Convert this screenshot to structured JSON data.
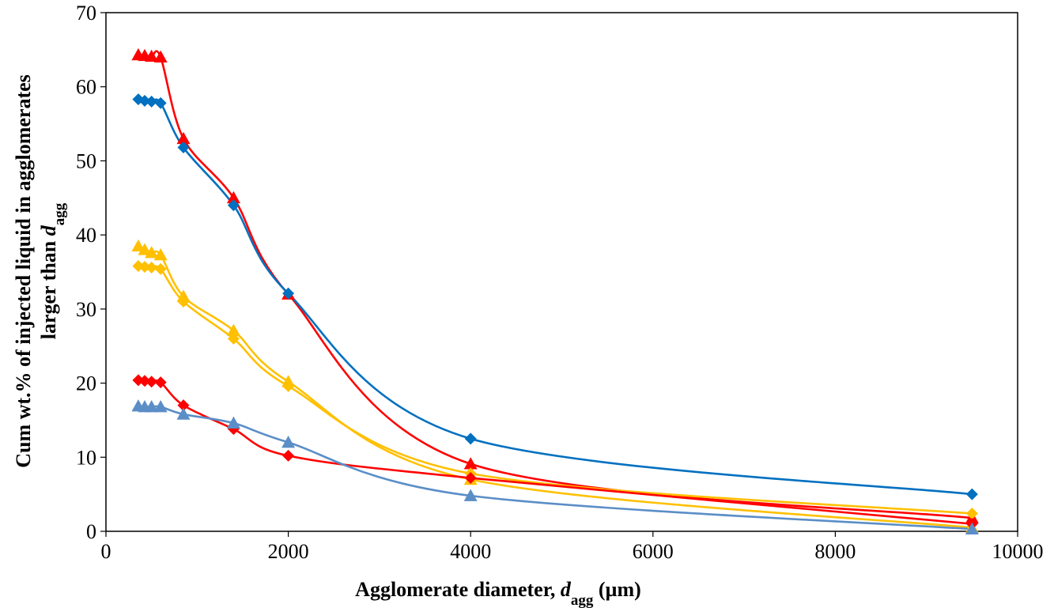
{
  "chart_data": {
    "type": "line",
    "xlabel": {
      "prefix": "Agglomerate diameter, ",
      "symbol": "d",
      "subscript": "agg",
      "suffix": " (µm)"
    },
    "ylabel": {
      "line1": "Cum wt.% of injected liquid in agglomerates",
      "line2_prefix": "larger than ",
      "line2_symbol": "d",
      "line2_subscript": "agg"
    },
    "xlim": [
      0,
      10000
    ],
    "ylim": [
      0,
      70
    ],
    "xticks": [
      0,
      2000,
      4000,
      6000,
      8000,
      10000
    ],
    "yticks": [
      0,
      10,
      20,
      30,
      40,
      50,
      60,
      70
    ],
    "grid": false,
    "legend": false,
    "series": [
      {
        "color": "#ff0000",
        "marker": "triangle",
        "x": [
          355,
          425,
          500,
          600,
          850,
          1400,
          2000,
          4000,
          9500
        ],
        "y": [
          64.3,
          64.2,
          64.1,
          64.0,
          53.0,
          45.0,
          32.0,
          9.1,
          1.8
        ]
      },
      {
        "color": "#0070c0",
        "marker": "diamond",
        "x": [
          355,
          425,
          500,
          600,
          850,
          1400,
          2000,
          4000,
          9500
        ],
        "y": [
          58.3,
          58.1,
          58.0,
          57.8,
          51.8,
          44.0,
          32.1,
          12.5,
          5.0
        ]
      },
      {
        "color": "#ffc000",
        "marker": "triangle",
        "x": [
          355,
          425,
          500,
          600,
          850,
          1400,
          2000,
          4000,
          9500
        ],
        "y": [
          38.5,
          38.0,
          37.6,
          37.3,
          31.7,
          27.1,
          20.2,
          7.0,
          0.5
        ]
      },
      {
        "color": "#ffc000",
        "marker": "diamond",
        "x": [
          355,
          425,
          500,
          600,
          850,
          1400,
          2000,
          4000,
          9500
        ],
        "y": [
          35.8,
          35.7,
          35.6,
          35.4,
          31.0,
          26.0,
          19.6,
          7.8,
          2.4
        ]
      },
      {
        "color": "#ff0000",
        "marker": "diamond",
        "x": [
          355,
          425,
          500,
          600,
          850,
          1400,
          2000,
          4000,
          9500
        ],
        "y": [
          20.4,
          20.3,
          20.2,
          20.1,
          17.0,
          13.8,
          10.2,
          7.2,
          1.0
        ]
      },
      {
        "color": "#5b8ec7",
        "marker": "triangle",
        "x": [
          355,
          425,
          500,
          600,
          850,
          1400,
          2000,
          4000,
          9500
        ],
        "y": [
          16.9,
          16.8,
          16.8,
          16.8,
          15.8,
          14.6,
          12.0,
          4.8,
          0.3
        ]
      }
    ]
  }
}
